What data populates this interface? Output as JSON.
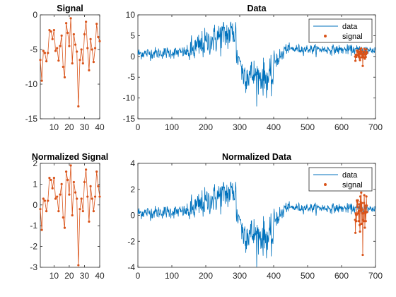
{
  "colors": {
    "data_line": "#0072BD",
    "signal": "#D95319",
    "axis": "#262626",
    "background": "#ffffff"
  },
  "chart_data": [
    {
      "id": "signal",
      "type": "line",
      "title": "Signal",
      "xlabel": "",
      "ylabel": "",
      "xlim": [
        1,
        40
      ],
      "ylim": [
        -15,
        0
      ],
      "xticks": [
        10,
        20,
        30,
        40
      ],
      "yticks": [
        -15,
        -10,
        -5,
        0
      ],
      "grid": false,
      "series": [
        {
          "marker": "dot",
          "x": [
            1,
            2,
            3,
            4,
            5,
            6,
            7,
            8,
            9,
            10,
            11,
            12,
            13,
            14,
            15,
            16,
            17,
            18,
            19,
            20,
            21,
            22,
            23,
            24,
            25,
            26,
            27,
            28,
            29,
            30,
            31,
            32,
            33,
            34,
            35,
            36,
            37,
            38,
            39,
            40
          ],
          "values": [
            -6.5,
            -9.5,
            -5.2,
            -5.5,
            -6.7,
            -5.5,
            -2.2,
            -2.4,
            -3.5,
            -2.2,
            -5.2,
            -4.8,
            -6.6,
            -4.5,
            -3.0,
            -7.5,
            -9.0,
            -1.2,
            -2.6,
            -4.5,
            -0.5,
            -7.0,
            -2.8,
            -4.3,
            -5.3,
            -13.2,
            -6.5,
            -5.0,
            -7.0,
            -2.8,
            -1.0,
            -4.8,
            -8.0,
            -3.5,
            -5.0,
            -6.8,
            -4.8,
            -1.3,
            -3.2,
            -3.8
          ]
        }
      ]
    },
    {
      "id": "data",
      "type": "line",
      "title": "Data",
      "xlabel": "",
      "ylabel": "",
      "xlim": [
        0,
        700
      ],
      "ylim": [
        -15,
        10
      ],
      "xticks": [
        0,
        100,
        200,
        300,
        400,
        500,
        600,
        700
      ],
      "yticks": [
        -15,
        -10,
        -5,
        0,
        5,
        10
      ],
      "grid": false,
      "legend": {
        "position": "top-right",
        "entries": [
          "data",
          "signal"
        ]
      },
      "series": [
        {
          "name": "data",
          "x_range": [
            0,
            700
          ],
          "segments": [
            {
              "from": 0,
              "to": 150,
              "level_start": 0.7,
              "level_end": 1.0,
              "noise": 1.0
            },
            {
              "from": 150,
              "to": 230,
              "level_start": 1.0,
              "level_end": 4.5,
              "noise": 2.5
            },
            {
              "from": 230,
              "to": 290,
              "level_start": 4.5,
              "level_end": 6.0,
              "noise": 3.0
            },
            {
              "from": 290,
              "to": 305,
              "level_start": 0.0,
              "level_end": -1.0,
              "noise": 2.0
            },
            {
              "from": 305,
              "to": 400,
              "level_start": -4.0,
              "level_end": -5.5,
              "noise": 3.0
            },
            {
              "from": 400,
              "to": 430,
              "level_start": -1.0,
              "level_end": 0.5,
              "noise": 1.5
            },
            {
              "from": 430,
              "to": 700,
              "level_start": 1.8,
              "level_end": 1.5,
              "noise": 0.8
            }
          ]
        },
        {
          "name": "signal",
          "marker": "dot",
          "x_start": 640,
          "x_end": 675,
          "values_from": "signal_shifted"
        }
      ]
    },
    {
      "id": "normalized-signal",
      "type": "line",
      "title": "Normalized Signal",
      "xlabel": "",
      "ylabel": "",
      "xlim": [
        1,
        40
      ],
      "ylim": [
        -3,
        2
      ],
      "xticks": [
        10,
        20,
        30,
        40
      ],
      "yticks": [
        -3,
        -2,
        -1,
        0,
        1,
        2
      ],
      "grid": false,
      "series": [
        {
          "marker": "dot",
          "x": [
            1,
            2,
            3,
            4,
            5,
            6,
            7,
            8,
            9,
            10,
            11,
            12,
            13,
            14,
            15,
            16,
            17,
            18,
            19,
            20,
            21,
            22,
            23,
            24,
            25,
            26,
            27,
            28,
            29,
            30,
            31,
            32,
            33,
            34,
            35,
            36,
            37,
            38,
            39,
            40
          ],
          "values": [
            -0.2,
            -1.2,
            0.3,
            0.2,
            -0.3,
            0.2,
            1.3,
            1.2,
            0.8,
            1.3,
            0.3,
            0.4,
            -0.3,
            0.5,
            1.0,
            -0.6,
            -1.1,
            1.6,
            1.2,
            0.5,
            1.9,
            -0.5,
            1.1,
            0.6,
            0.3,
            -2.9,
            -0.2,
            0.3,
            -0.3,
            1.1,
            1.7,
            0.4,
            -0.8,
            0.9,
            0.3,
            -0.3,
            0.4,
            1.6,
            0.9,
            0.4
          ]
        }
      ]
    },
    {
      "id": "normalized-data",
      "type": "line",
      "title": "Normalized Data",
      "xlabel": "",
      "ylabel": "",
      "xlim": [
        0,
        700
      ],
      "ylim": [
        -4,
        4
      ],
      "xticks": [
        0,
        100,
        200,
        300,
        400,
        500,
        600,
        700
      ],
      "yticks": [
        -4,
        -2,
        0,
        2,
        4
      ],
      "grid": false,
      "legend": {
        "position": "top-right",
        "entries": [
          "data",
          "signal"
        ]
      },
      "series": [
        {
          "name": "data",
          "x_range": [
            0,
            700
          ],
          "segments": [
            {
              "from": 0,
              "to": 150,
              "level_start": 0.2,
              "level_end": 0.3,
              "noise": 0.35
            },
            {
              "from": 150,
              "to": 230,
              "level_start": 0.3,
              "level_end": 1.4,
              "noise": 0.8
            },
            {
              "from": 230,
              "to": 290,
              "level_start": 1.4,
              "level_end": 1.9,
              "noise": 0.9
            },
            {
              "from": 290,
              "to": 305,
              "level_start": 0.0,
              "level_end": -0.3,
              "noise": 0.6
            },
            {
              "from": 305,
              "to": 400,
              "level_start": -1.3,
              "level_end": -1.8,
              "noise": 1.0
            },
            {
              "from": 400,
              "to": 430,
              "level_start": -0.3,
              "level_end": 0.2,
              "noise": 0.5
            },
            {
              "from": 430,
              "to": 700,
              "level_start": 0.6,
              "level_end": 0.5,
              "noise": 0.25
            }
          ]
        },
        {
          "name": "signal",
          "marker": "dot",
          "x_start": 640,
          "x_end": 675,
          "values_from": "normalized_signal"
        }
      ]
    }
  ]
}
